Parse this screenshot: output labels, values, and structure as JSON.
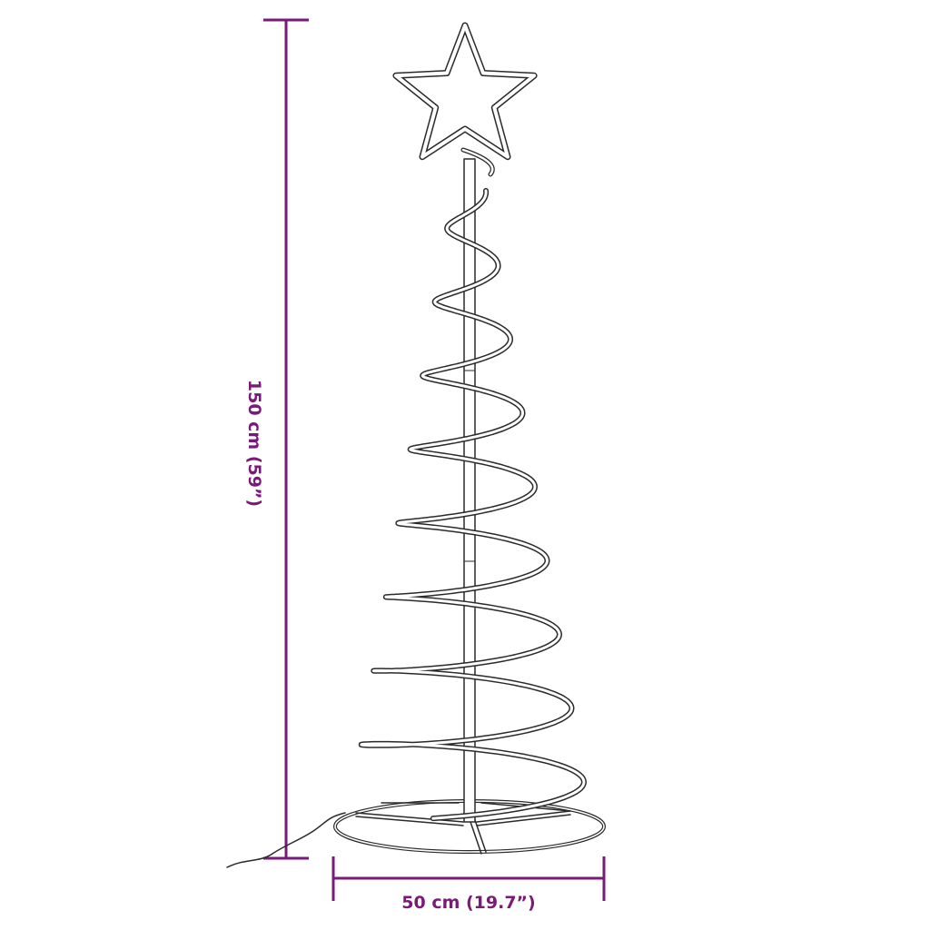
{
  "dimensions": {
    "height_label": "150 cm (59”)",
    "width_label": "50 cm (19.7”)"
  },
  "colors": {
    "dimension": "#7a1a78",
    "outline": "#2a2a2a",
    "background": "#ffffff"
  },
  "icons": [
    "star-topper",
    "spiral-tree",
    "round-base",
    "power-cable"
  ]
}
